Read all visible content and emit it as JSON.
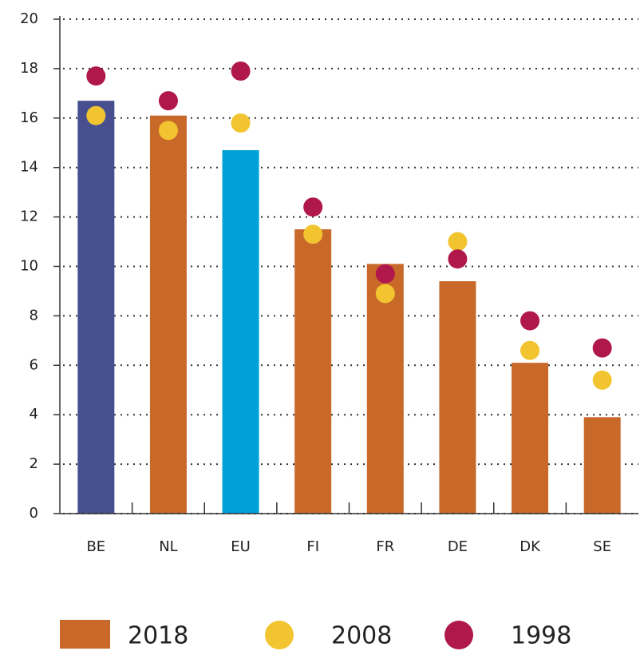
{
  "chart_data": {
    "type": "bar",
    "categories": [
      "BE",
      "NL",
      "EU",
      "FI",
      "FR",
      "DE",
      "DK",
      "SE"
    ],
    "series": [
      {
        "name": "2018",
        "type": "bar",
        "color": "#c8692a",
        "colors": [
          "#474f8f",
          "#c8692a",
          "#00a0d8",
          "#c8692a",
          "#c8692a",
          "#c8692a",
          "#c8692a",
          "#c8692a"
        ],
        "values": [
          16.7,
          16.1,
          14.7,
          11.5,
          10.1,
          9.4,
          6.1,
          3.9
        ]
      },
      {
        "name": "2008",
        "type": "dot",
        "color": "#f2c530",
        "values": [
          16.1,
          15.5,
          15.8,
          11.3,
          8.9,
          11.0,
          6.6,
          5.4
        ]
      },
      {
        "name": "1998",
        "type": "dot",
        "color": "#b0174b",
        "values": [
          17.7,
          16.7,
          17.9,
          12.4,
          9.7,
          10.3,
          7.8,
          6.7
        ]
      }
    ],
    "ylim": [
      0,
      20
    ],
    "yticks": [
      0,
      2,
      4,
      6,
      8,
      10,
      12,
      14,
      16,
      18,
      20
    ],
    "grid": true
  }
}
